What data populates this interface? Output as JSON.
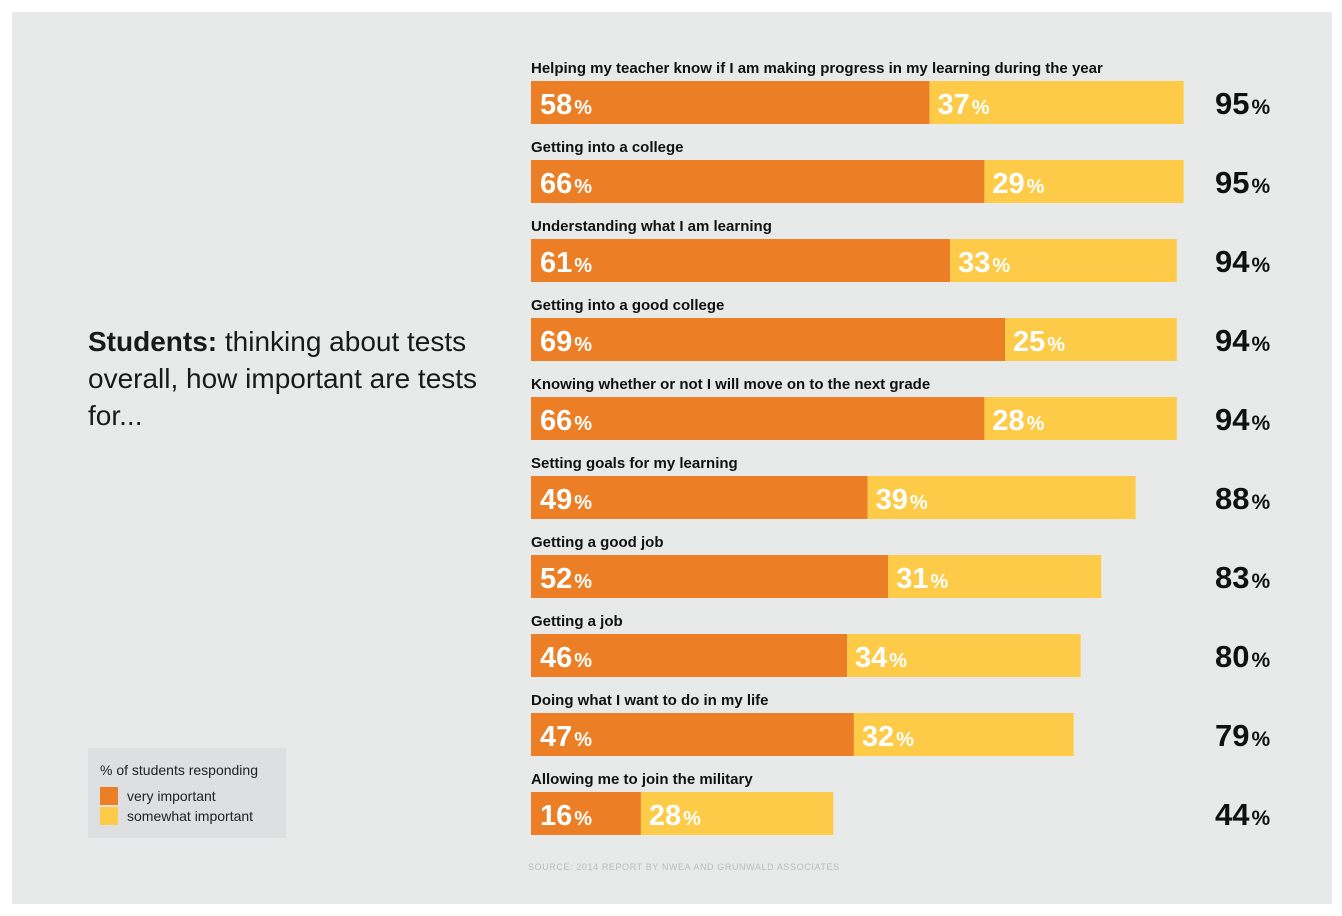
{
  "question": {
    "bold": "Students:",
    "rest": "thinking about tests overall, how important are tests for..."
  },
  "legend": {
    "title": "% of students responding",
    "very_label": "very important",
    "somewhat_label": "somewhat important"
  },
  "source": "SOURCE: 2014 REPORT BY NWEA AND GRUNWALD ASSOCIATES",
  "colors": {
    "very_important": "#ec7f26",
    "somewhat_important": "#fdcb48",
    "background": "#e8eaea"
  },
  "chart_data": {
    "type": "bar",
    "orientation": "horizontal",
    "stacked": true,
    "unit": "%",
    "categories": [
      "Helping my teacher know if I am making progress in my learning during the year",
      "Getting into a college",
      "Understanding what I am learning",
      "Getting into a good college",
      "Knowing whether or not I will move on to the next grade",
      "Setting goals for my learning",
      "Getting a good job",
      "Getting a job",
      "Doing what I want to do in my life",
      "Allowing me to join the military"
    ],
    "series": [
      {
        "name": "very important",
        "values": [
          58,
          66,
          61,
          69,
          66,
          49,
          52,
          46,
          47,
          16
        ]
      },
      {
        "name": "somewhat important",
        "values": [
          37,
          29,
          33,
          25,
          28,
          39,
          31,
          34,
          32,
          28
        ]
      }
    ],
    "totals": [
      95,
      95,
      94,
      94,
      94,
      88,
      83,
      80,
      79,
      44
    ],
    "xlim": [
      0,
      100
    ],
    "grid": false,
    "legend_position": "bottom-left"
  }
}
